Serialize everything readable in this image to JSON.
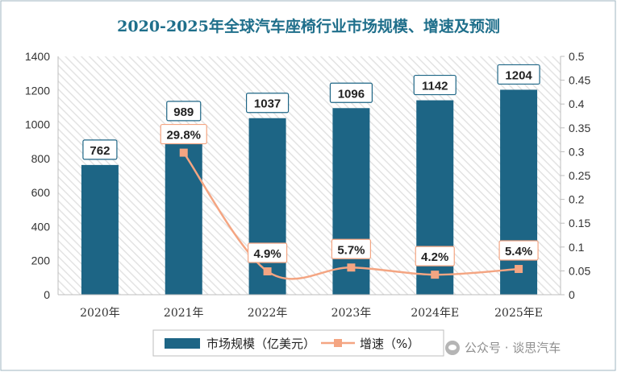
{
  "chart_data": {
    "type": "bar+line",
    "title": "2020-2025年全球汽车座椅行业市场规模、增速及预测",
    "categories": [
      "2020年",
      "2021年",
      "2022年",
      "2023年",
      "2024年E",
      "2025年E"
    ],
    "series": [
      {
        "name": "市场规模（亿美元）",
        "type": "bar",
        "axis": "left",
        "values": [
          762,
          989,
          1037,
          1096,
          1142,
          1204
        ],
        "labels": [
          "762",
          "989",
          "1037",
          "1096",
          "1142",
          "1204"
        ],
        "color": "#1d6585"
      },
      {
        "name": "增速（%）",
        "type": "line",
        "axis": "right",
        "values": [
          null,
          0.298,
          0.049,
          0.057,
          0.042,
          0.054
        ],
        "labels": [
          "",
          "29.8%",
          "4.9%",
          "5.7%",
          "4.2%",
          "5.4%"
        ],
        "color": "#f4a582",
        "smooth": true
      }
    ],
    "y_left": {
      "min": 0,
      "max": 1400,
      "ticks": [
        "0",
        "200",
        "400",
        "600",
        "800",
        "1000",
        "1200",
        "1400"
      ]
    },
    "y_right": {
      "min": 0,
      "max": 0.5,
      "ticks": [
        "0",
        "0.05",
        "0.1",
        "0.15",
        "0.2",
        "0.25",
        "0.3",
        "0.35",
        "0.4",
        "0.45",
        "0.5"
      ]
    },
    "legend": "bottom",
    "background": "diagonal-hatch",
    "grid": false
  },
  "watermark": {
    "text": "公众号 · 谈思汽车"
  },
  "colors": {
    "title": "#1f6f8b",
    "bar": "#1d6585",
    "line": "#f4a582",
    "frame": "#9fb6c0"
  }
}
